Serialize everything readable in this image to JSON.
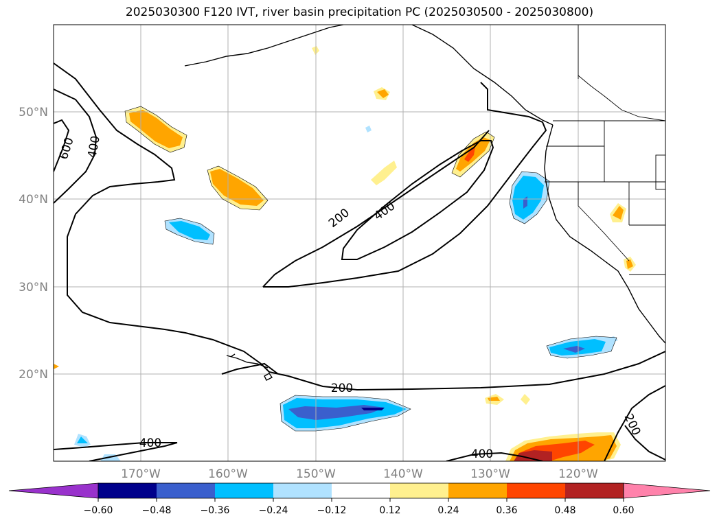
{
  "title": "2025030300 F120 IVT, river basin precipitation PC (2025030500 - 2025030800)",
  "lat_labels": [
    "50°N",
    "40°N",
    "30°N",
    "20°N"
  ],
  "lon_labels": [
    "170°W",
    "160°W",
    "150°W",
    "140°W",
    "130°W",
    "120°W"
  ],
  "contour_labels": {
    "c600": "600",
    "c400_nw": "400",
    "c200_mid": "200",
    "c400_mid": "400",
    "c200_south": "200",
    "c400_sw": "400",
    "c400_se": "400",
    "c200_se": "200"
  },
  "colorbar": {
    "ticks": [
      "−0.60",
      "−0.48",
      "−0.36",
      "−0.24",
      "−0.12",
      "0.12",
      "0.24",
      "0.36",
      "0.48",
      "0.60"
    ],
    "colors": [
      "#9932cc",
      "#00008b",
      "#3a5fcd",
      "#00bfff",
      "#b0e2ff",
      "#ffffff",
      "#fff08f",
      "#ffa500",
      "#ff4500",
      "#b22222",
      "#ff82ab"
    ]
  },
  "colors": {
    "contour": "#000000",
    "grid": "#b0b0b0",
    "coast": "#000000"
  }
}
